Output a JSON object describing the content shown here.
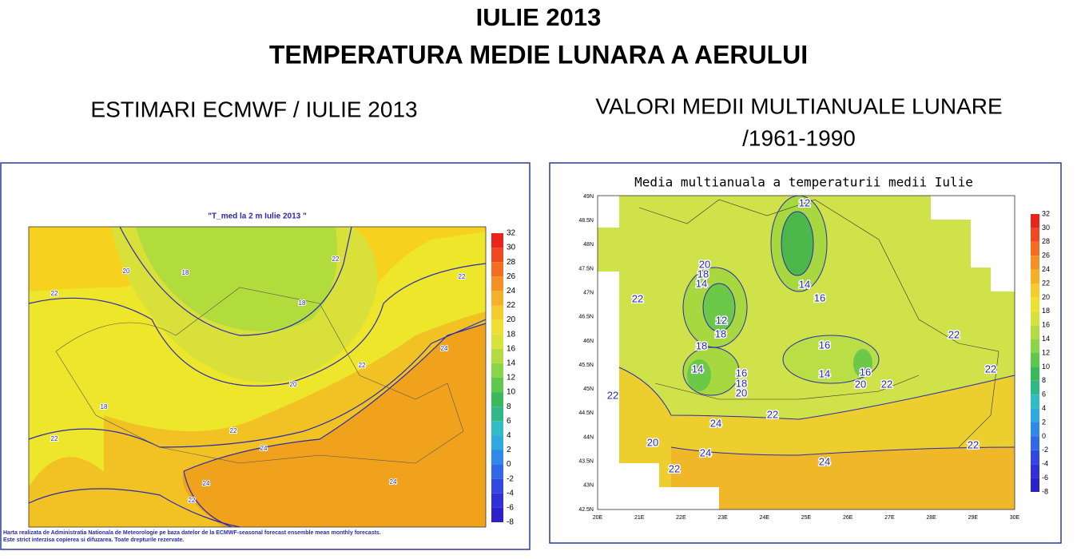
{
  "title": "IULIE 2013",
  "subtitle": "TEMPERATURA MEDIE LUNARA A AERULUI",
  "left": {
    "heading": "ESTIMARI ECMWF / IULIE 2013",
    "map_title": "\"T_med la 2 m Iulie 2013 \"",
    "colorbar": [
      32,
      30,
      28,
      26,
      24,
      22,
      20,
      18,
      16,
      14,
      12,
      10,
      8,
      6,
      4,
      2,
      0,
      -2,
      -4,
      -6,
      -8
    ],
    "contour_labels": [
      22,
      20,
      18,
      18,
      22,
      22,
      24,
      22,
      20,
      18,
      22,
      22,
      24,
      24,
      24,
      22
    ],
    "footer": [
      "Harta realizata de Administratia Nationala de Meteorologie pe baza datelor de la ECMWF-seasonal forecast ensemble mean monthly forecasts.",
      "Este strict interzisa copierea si difuzarea. Toate drepturile rezervate."
    ]
  },
  "right": {
    "heading": [
      "VALORI MEDII MULTIANUALE LUNARE",
      "/1961-1990"
    ],
    "map_title": "Media multianuala a temperaturii medii Iulie",
    "colorbar": [
      32,
      30,
      28,
      26,
      24,
      22,
      20,
      18,
      16,
      14,
      12,
      10,
      8,
      6,
      4,
      2,
      0,
      -2,
      -4,
      -6,
      -8
    ],
    "lat_labels": [
      "49N",
      "48.5N",
      "48N",
      "47.5N",
      "47N",
      "46.5N",
      "46N",
      "45.5N",
      "45N",
      "44.5N",
      "44N",
      "43.5N",
      "43N",
      "42.5N"
    ],
    "lon_labels": [
      "20E",
      "21E",
      "22E",
      "23E",
      "24E",
      "25E",
      "26E",
      "27E",
      "28E",
      "29E",
      "30E"
    ],
    "contour_labels": [
      12,
      14,
      16,
      20,
      18,
      14,
      12,
      18,
      22,
      18,
      14,
      16,
      18,
      20,
      16,
      14,
      16,
      20,
      22,
      22,
      22,
      22,
      22,
      24,
      24,
      24,
      22,
      20,
      22
    ]
  }
}
